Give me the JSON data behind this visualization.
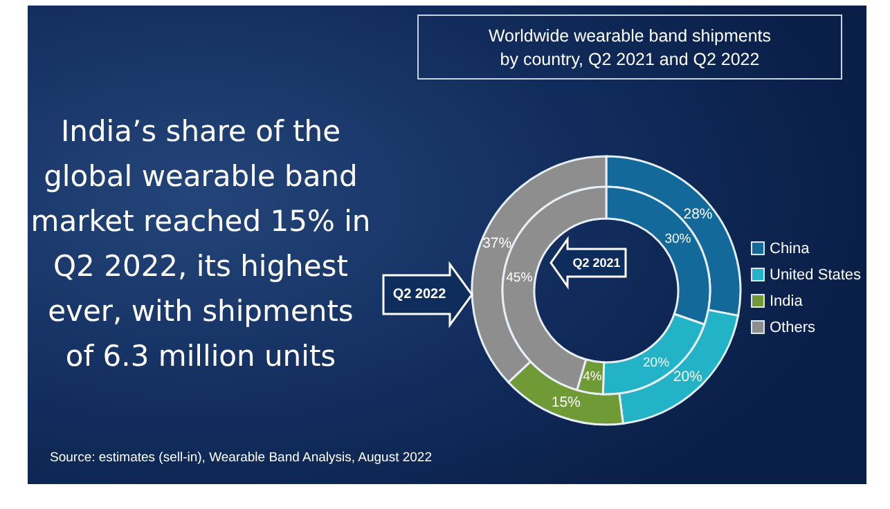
{
  "chart_data": {
    "type": "donut",
    "title": "India’s share of the global wearable band market reached 15% in Q2 2022, its highest ever, with shipments of 6.3 million units",
    "subtitle": "Worldwide wearable band shipments by country, Q2 2021 and Q2 2022",
    "categories": [
      "China",
      "United States",
      "India",
      "Others"
    ],
    "colors": [
      "#12699a",
      "#22b3c6",
      "#6f9a36",
      "#8e8e8e"
    ],
    "series": [
      {
        "name": "Q2 2022",
        "values": [
          28,
          20,
          15,
          37
        ],
        "value_labels": [
          "28%",
          "20%",
          "15%",
          "37%"
        ]
      },
      {
        "name": "Q2 2021",
        "values": [
          30,
          20,
          4,
          45
        ],
        "value_labels": [
          "30%",
          "20%",
          "4%",
          "45%"
        ]
      }
    ],
    "legend": "right",
    "annotations": [
      "Source: estimates (sell-in), Wearable Band Analysis, August 2022"
    ]
  }
}
